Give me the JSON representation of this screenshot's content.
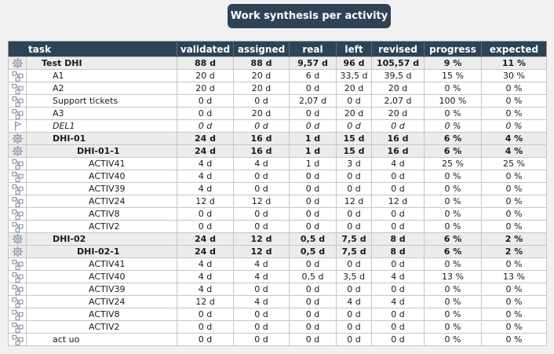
{
  "banner": {
    "title": "Work synthesis per activity",
    "color": "#2f4356"
  },
  "table": {
    "columns": [
      "task",
      "validated",
      "assigned",
      "real",
      "left",
      "revised",
      "progress",
      "expected"
    ],
    "rows": [
      {
        "icon": "gear",
        "task": "Test DHI",
        "level": 0,
        "style": "summary",
        "values": [
          "88 d",
          "88 d",
          "9,57 d",
          "96 d",
          "105,57 d",
          "9 %",
          "11 %"
        ]
      },
      {
        "icon": "sitemap",
        "task": "A1",
        "level": 1,
        "style": "normal",
        "values": [
          "20 d",
          "20 d",
          "6 d",
          "33,5 d",
          "39,5 d",
          "15 %",
          "30 %"
        ]
      },
      {
        "icon": "sitemap",
        "task": "A2",
        "level": 1,
        "style": "normal",
        "values": [
          "20 d",
          "20 d",
          "0 d",
          "20 d",
          "20 d",
          "0 %",
          "0 %"
        ]
      },
      {
        "icon": "sitemap",
        "task": "Support tickets",
        "level": 1,
        "style": "normal",
        "values": [
          "0 d",
          "0 d",
          "2,07 d",
          "0 d",
          "2,07 d",
          "100 %",
          "0 %"
        ]
      },
      {
        "icon": "sitemap",
        "task": "A3",
        "level": 1,
        "style": "normal",
        "values": [
          "0 d",
          "20 d",
          "0 d",
          "20 d",
          "20 d",
          "0 %",
          "0 %"
        ]
      },
      {
        "icon": "flag",
        "task": "DEL1",
        "level": 1,
        "style": "milestone",
        "values": [
          "0 d",
          "0 d",
          "0 d",
          "0 d",
          "0 d",
          "0 %",
          "0 %"
        ]
      },
      {
        "icon": "gear",
        "task": "DHI-01",
        "level": 1,
        "style": "summary",
        "values": [
          "24 d",
          "16 d",
          "1 d",
          "15 d",
          "16 d",
          "6 %",
          "4 %"
        ]
      },
      {
        "icon": "gear",
        "task": "DHI-01-1",
        "level": 2,
        "style": "summary",
        "values": [
          "24 d",
          "16 d",
          "1 d",
          "15 d",
          "16 d",
          "6 %",
          "4 %"
        ]
      },
      {
        "icon": "sitemap",
        "task": "ACTIV41",
        "level": 3,
        "style": "normal",
        "values": [
          "4 d",
          "4 d",
          "1 d",
          "3 d",
          "4 d",
          "25 %",
          "25 %"
        ]
      },
      {
        "icon": "sitemap",
        "task": "ACTIV40",
        "level": 3,
        "style": "normal",
        "values": [
          "4 d",
          "0 d",
          "0 d",
          "0 d",
          "0 d",
          "0 %",
          "0 %"
        ]
      },
      {
        "icon": "sitemap",
        "task": "ACTIV39",
        "level": 3,
        "style": "normal",
        "values": [
          "4 d",
          "0 d",
          "0 d",
          "0 d",
          "0 d",
          "0 %",
          "0 %"
        ]
      },
      {
        "icon": "sitemap",
        "task": "ACTIV24",
        "level": 3,
        "style": "normal",
        "values": [
          "12 d",
          "12 d",
          "0 d",
          "12 d",
          "12 d",
          "0 %",
          "0 %"
        ]
      },
      {
        "icon": "sitemap",
        "task": "ACTIV8",
        "level": 3,
        "style": "normal",
        "values": [
          "0 d",
          "0 d",
          "0 d",
          "0 d",
          "0 d",
          "0 %",
          "0 %"
        ]
      },
      {
        "icon": "sitemap",
        "task": "ACTIV2",
        "level": 3,
        "style": "normal",
        "values": [
          "0 d",
          "0 d",
          "0 d",
          "0 d",
          "0 d",
          "0 %",
          "0 %"
        ]
      },
      {
        "icon": "gear",
        "task": "DHI-02",
        "level": 1,
        "style": "summary",
        "values": [
          "24 d",
          "12 d",
          "0,5 d",
          "7,5 d",
          "8 d",
          "6 %",
          "2 %"
        ]
      },
      {
        "icon": "gear",
        "task": "DHI-02-1",
        "level": 2,
        "style": "summary",
        "values": [
          "24 d",
          "12 d",
          "0,5 d",
          "7,5 d",
          "8 d",
          "6 %",
          "2 %"
        ]
      },
      {
        "icon": "sitemap",
        "task": "ACTIV41",
        "level": 3,
        "style": "normal",
        "values": [
          "4 d",
          "4 d",
          "0 d",
          "0 d",
          "0 d",
          "0 %",
          "0 %"
        ]
      },
      {
        "icon": "sitemap",
        "task": "ACTIV40",
        "level": 3,
        "style": "normal",
        "values": [
          "4 d",
          "4 d",
          "0,5 d",
          "3,5 d",
          "4 d",
          "13 %",
          "13 %"
        ]
      },
      {
        "icon": "sitemap",
        "task": "ACTIV39",
        "level": 3,
        "style": "normal",
        "values": [
          "4 d",
          "0 d",
          "0 d",
          "0 d",
          "0 d",
          "0 %",
          "0 %"
        ]
      },
      {
        "icon": "sitemap",
        "task": "ACTIV24",
        "level": 3,
        "style": "normal",
        "values": [
          "12 d",
          "4 d",
          "0 d",
          "4 d",
          "4 d",
          "0 %",
          "0 %"
        ]
      },
      {
        "icon": "sitemap",
        "task": "ACTIV8",
        "level": 3,
        "style": "normal",
        "values": [
          "0 d",
          "0 d",
          "0 d",
          "0 d",
          "0 d",
          "0 %",
          "0 %"
        ]
      },
      {
        "icon": "sitemap",
        "task": "ACTIV2",
        "level": 3,
        "style": "normal",
        "values": [
          "0 d",
          "0 d",
          "0 d",
          "0 d",
          "0 d",
          "0 %",
          "0 %"
        ]
      },
      {
        "icon": "sitemap",
        "task": "act uo",
        "level": 1,
        "style": "normal",
        "values": [
          "0 d",
          "0 d",
          "0 d",
          "0 d",
          "0 d",
          "0 %",
          "0 %"
        ]
      }
    ]
  }
}
